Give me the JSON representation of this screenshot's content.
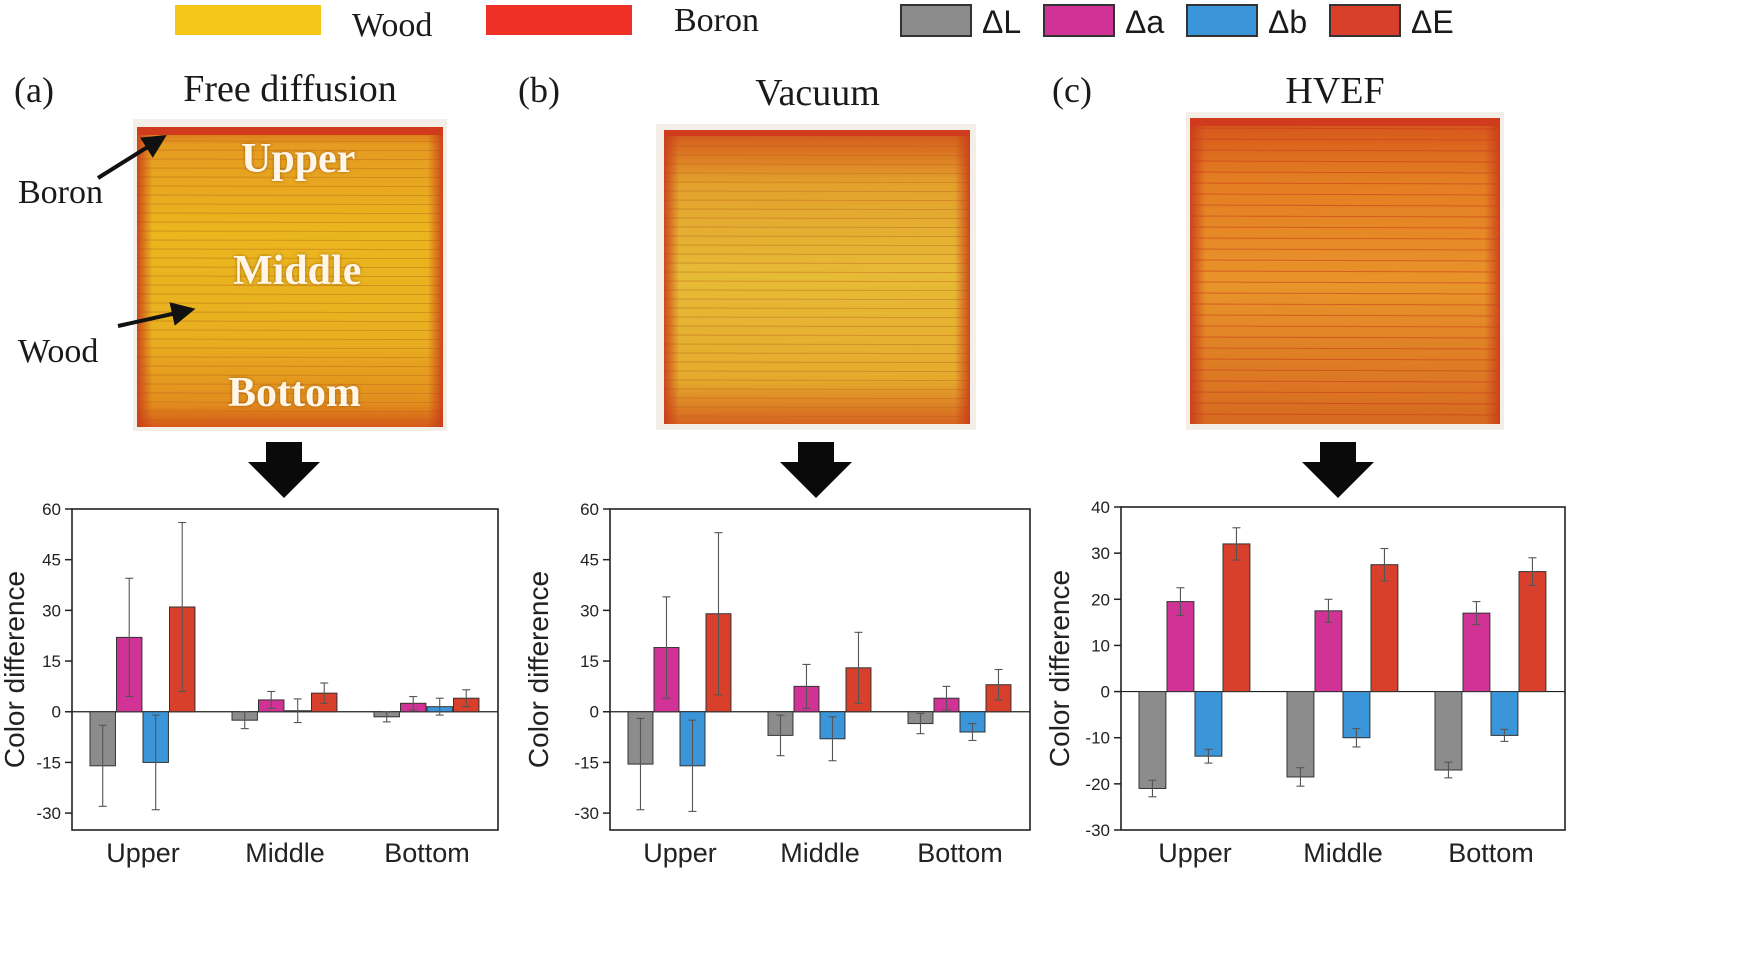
{
  "legend": {
    "materials": [
      {
        "label": "Wood",
        "color": "#f5c518"
      },
      {
        "label": "Boron",
        "color": "#ee3026"
      }
    ],
    "series": [
      {
        "label": "ΔL",
        "color": "#8c8c8c"
      },
      {
        "label": "Δa",
        "color": "#d03395"
      },
      {
        "label": "Δb",
        "color": "#3a96d8"
      },
      {
        "label": "ΔE",
        "color": "#d8402c"
      }
    ]
  },
  "panels": [
    {
      "letter": "(a)",
      "title": "Free diffusion",
      "photo_labels": {
        "upper": "Upper",
        "middle": "Middle",
        "bottom": "Bottom"
      },
      "annotations": {
        "boron": "Boron",
        "wood": "Wood"
      }
    },
    {
      "letter": "(b)",
      "title": "Vacuum"
    },
    {
      "letter": "(c)",
      "title": "HVEF"
    }
  ],
  "chart_data": [
    {
      "type": "bar",
      "panel": "(a)",
      "categories": [
        "Upper",
        "Middle",
        "Bottom"
      ],
      "ylabel": "Color difference",
      "ylim": [
        -35,
        60
      ],
      "yticks": [
        -30,
        -15,
        0,
        15,
        30,
        45,
        60
      ],
      "series": [
        {
          "name": "ΔL",
          "values": [
            -16,
            -2.5,
            -1.5
          ],
          "errors": [
            12,
            2.5,
            1.5
          ]
        },
        {
          "name": "Δa",
          "values": [
            22,
            3.5,
            2.5
          ],
          "errors": [
            17.5,
            2.5,
            2
          ]
        },
        {
          "name": "Δb",
          "values": [
            -15,
            0.3,
            1.5
          ],
          "errors": [
            14,
            3.5,
            2.5
          ]
        },
        {
          "name": "ΔE",
          "values": [
            31,
            5.5,
            4
          ],
          "errors": [
            25,
            3,
            2.5
          ]
        }
      ]
    },
    {
      "type": "bar",
      "panel": "(b)",
      "categories": [
        "Upper",
        "Middle",
        "Bottom"
      ],
      "ylabel": "Color difference",
      "ylim": [
        -35,
        60
      ],
      "yticks": [
        -30,
        -15,
        0,
        15,
        30,
        45,
        60
      ],
      "series": [
        {
          "name": "ΔL",
          "values": [
            -15.5,
            -7,
            -3.5
          ],
          "errors": [
            13.5,
            6,
            3
          ]
        },
        {
          "name": "Δa",
          "values": [
            19,
            7.5,
            4
          ],
          "errors": [
            15,
            6.5,
            3.5
          ]
        },
        {
          "name": "Δb",
          "values": [
            -16,
            -8,
            -6
          ],
          "errors": [
            13.5,
            6.5,
            2.5
          ]
        },
        {
          "name": "ΔE",
          "values": [
            29,
            13,
            8
          ],
          "errors": [
            24,
            10.5,
            4.5
          ]
        }
      ]
    },
    {
      "type": "bar",
      "panel": "(c)",
      "categories": [
        "Upper",
        "Middle",
        "Bottom"
      ],
      "ylabel": "Color difference",
      "ylim": [
        -30,
        40
      ],
      "yticks": [
        -30,
        -20,
        -10,
        0,
        10,
        20,
        30,
        40
      ],
      "series": [
        {
          "name": "ΔL",
          "values": [
            -21,
            -18.5,
            -17
          ],
          "errors": [
            1.8,
            2,
            1.7
          ]
        },
        {
          "name": "Δa",
          "values": [
            19.5,
            17.5,
            17
          ],
          "errors": [
            3,
            2.5,
            2.5
          ]
        },
        {
          "name": "Δb",
          "values": [
            -14,
            -10,
            -9.5
          ],
          "errors": [
            1.5,
            2,
            1.3
          ]
        },
        {
          "name": "ΔE",
          "values": [
            32,
            27.5,
            26
          ],
          "errors": [
            3.5,
            3.5,
            3
          ]
        }
      ]
    }
  ]
}
